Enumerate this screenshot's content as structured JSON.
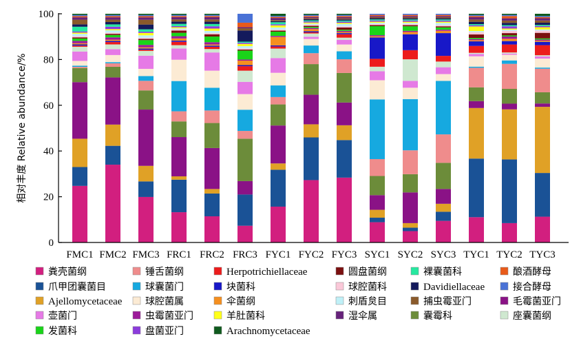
{
  "chart_data": {
    "type": "bar",
    "stacked": true,
    "ylabel": "相对丰度 Relative abundance/%",
    "ylim": [
      0,
      100
    ],
    "yticks": [
      0,
      20,
      40,
      60,
      80,
      100
    ],
    "grid": false,
    "legend_position": "bottom",
    "categories": [
      "FMC1",
      "FMC2",
      "FMC3",
      "FRC1",
      "FRC2",
      "FRC3",
      "FYC1",
      "FYC2",
      "FYC3",
      "SYC1",
      "SYC2",
      "SYC3",
      "TYC1",
      "TYC2",
      "TYC3"
    ],
    "series": [
      {
        "name": "粪壳菌纲",
        "color": "#d21f7f",
        "values": [
          24,
          33,
          19,
          13.5,
          11.5,
          7.5,
          17,
          28.5,
          28.5,
          9,
          5,
          9.5,
          11,
          8.5,
          11.5
        ]
      },
      {
        "name": "爪甲团囊菌目",
        "color": "#1a5296",
        "values": [
          8,
          8,
          6.5,
          14.5,
          10,
          14,
          17.5,
          19.5,
          16.5,
          2,
          1.5,
          4,
          25.5,
          28,
          19.5
        ]
      },
      {
        "name": "Ajellomycetaceae",
        "color": "#e0a126",
        "values": [
          12,
          9,
          6.5,
          1.5,
          2,
          0,
          3,
          6,
          6.5,
          3.5,
          2,
          3.5,
          22,
          22,
          29.5
        ]
      },
      {
        "name": "毛霉菌亚门",
        "color": "#8a1286",
        "values": [
          24,
          20,
          23.5,
          17.5,
          18,
          6,
          18,
          13.5,
          10,
          6.5,
          13.5,
          6.5,
          3,
          2.5,
          1.5
        ]
      },
      {
        "name": "囊霉科",
        "color": "#6c8c3a",
        "values": [
          6,
          4.5,
          8,
          7,
          11,
          19,
          10,
          14,
          13,
          8.5,
          8,
          11.5,
          6,
          6.5,
          5
        ]
      },
      {
        "name": "锤舌菌纲",
        "color": "#ef8c8c",
        "values": [
          0.5,
          1.5,
          4,
          4.5,
          5.5,
          3.5,
          3.5,
          5,
          6,
          7.5,
          10.5,
          12.5,
          8.5,
          11,
          10.5
        ]
      },
      {
        "name": "球囊菌门",
        "color": "#16a9e0",
        "values": [
          0.5,
          0.5,
          2,
          13.5,
          10,
          9.5,
          5.5,
          3.5,
          3.5,
          26.5,
          22.5,
          23.5,
          0.5,
          1.5,
          0.5
        ]
      },
      {
        "name": "球腔菌属",
        "color": "#fcebd4",
        "values": [
          2,
          3,
          3,
          9.5,
          7.5,
          7,
          6,
          3,
          3,
          8.5,
          5,
          3,
          4.5,
          2.5,
          4
        ]
      },
      {
        "name": "壶菌门",
        "color": "#e67ae6",
        "values": [
          4,
          2.5,
          5.5,
          5,
          8,
          5.5,
          7,
          1,
          2,
          4,
          3,
          3,
          1,
          0.5,
          1
        ]
      },
      {
        "name": "座囊菌纲",
        "color": "#cfe8d0",
        "values": [
          2,
          2,
          2,
          1.5,
          1.5,
          5,
          4.5,
          1.5,
          1,
          2,
          9.5,
          2.5,
          0.5,
          0.5,
          0.5
        ]
      },
      {
        "name": "Herpotrichiellaceae",
        "color": "#ec1c1c",
        "values": [
          0.5,
          1,
          0.5,
          1.5,
          1,
          2,
          1,
          0.5,
          1.5,
          3.5,
          4,
          2.5,
          3,
          3.5,
          4.5
        ]
      },
      {
        "name": "块菌科",
        "color": "#1818c8",
        "values": [
          0.5,
          0.5,
          0.5,
          0.5,
          0.5,
          0.5,
          0.5,
          0.5,
          0.5,
          9.5,
          7,
          10,
          2,
          1.5,
          1.5
        ]
      },
      {
        "name": "伞菌纲",
        "color": "#f58f1f",
        "values": [
          0.5,
          0.5,
          0.5,
          1,
          0.5,
          2,
          4,
          1,
          0.5,
          0.5,
          1,
          1,
          0.5,
          1,
          0.5
        ]
      },
      {
        "name": "虫霉菌亚门",
        "color": "#9c1b99",
        "values": [
          1,
          1,
          1,
          1,
          1,
          0.5,
          0.5,
          0.5,
          0.5,
          0.5,
          0.5,
          0.5,
          0.5,
          1,
          0.5
        ]
      },
      {
        "name": "发菌科",
        "color": "#19d419",
        "values": [
          1,
          1,
          2,
          1.5,
          2.5,
          4,
          2,
          0.5,
          0.5,
          4,
          2,
          1,
          0.5,
          0.5,
          0.5
        ]
      },
      {
        "name": "圆盘菌纲",
        "color": "#7a1010",
        "values": [
          0.5,
          0.5,
          0.5,
          1,
          1,
          0.5,
          0.5,
          0.5,
          1,
          0.5,
          0.5,
          0.5,
          1.5,
          1,
          2.5
        ]
      },
      {
        "name": "球腔菌科",
        "color": "#fac8d8",
        "values": [
          0.5,
          0.5,
          0.5,
          0.5,
          0.5,
          0.5,
          0.5,
          0.5,
          0.5,
          0.5,
          0.5,
          0.5,
          1,
          1,
          1
        ]
      },
      {
        "name": "刺盾炱目",
        "color": "#bff0f7",
        "values": [
          1,
          1,
          1,
          0.5,
          1,
          1,
          1,
          0.5,
          1,
          0.5,
          0.5,
          1,
          0.5,
          0.5,
          0.5
        ]
      },
      {
        "name": "羊肚菌科",
        "color": "#ffff1a",
        "values": [
          0.5,
          0.5,
          1,
          0.5,
          1,
          1,
          1,
          0.5,
          0.5,
          0.5,
          0.5,
          0.5,
          2,
          0.5,
          1
        ]
      },
      {
        "name": "盘菌亚门",
        "color": "#8c3cdc",
        "values": [
          0.5,
          1,
          0.5,
          0.5,
          1,
          0.5,
          0.5,
          0.5,
          0.5,
          0.5,
          0.5,
          0.5,
          0.5,
          1,
          0.5
        ]
      },
      {
        "name": "裸囊菌科",
        "color": "#26e8a0",
        "values": [
          2,
          1,
          1,
          1,
          1,
          0.5,
          1,
          0.5,
          0.5,
          0.5,
          0.5,
          0.5,
          0.5,
          0.5,
          0.5
        ]
      },
      {
        "name": "Davidiellaceae",
        "color": "#141a5c",
        "values": [
          1,
          1,
          2,
          1,
          1,
          5,
          0.5,
          0.5,
          0.5,
          0.5,
          0.5,
          0.5,
          1,
          1,
          1
        ]
      },
      {
        "name": "捕虫霉亚门",
        "color": "#8a5a2b",
        "values": [
          2,
          1,
          2,
          1,
          1,
          1,
          0.5,
          0.5,
          0.5,
          0.5,
          0.5,
          0.5,
          1,
          1,
          1
        ]
      },
      {
        "name": "湿伞属",
        "color": "#66227a",
        "values": [
          1,
          1,
          1,
          1,
          1,
          0.5,
          1,
          0.5,
          0.5,
          0.5,
          0.5,
          0.5,
          1,
          1,
          1
        ]
      },
      {
        "name": "酿酒酵母",
        "color": "#e85a1a",
        "values": [
          0.5,
          0.5,
          0.5,
          0.5,
          0.5,
          2,
          0.5,
          0.5,
          0.5,
          0.5,
          0.5,
          0.5,
          0.5,
          1,
          0.5
        ]
      },
      {
        "name": "接合酵母",
        "color": "#4a72d6",
        "values": [
          0.5,
          0.5,
          0.5,
          0.5,
          0.5,
          4,
          0.5,
          0.5,
          0.5,
          0.5,
          0.5,
          0.5,
          0.5,
          0.5,
          0.5
        ]
      },
      {
        "name": "Arachnomycetaceae",
        "color": "#0f5a1e",
        "values": [
          0.5,
          0.5,
          0.5,
          0.5,
          0.5,
          0,
          1,
          0.5,
          0.5,
          0,
          0,
          0,
          0.5,
          0.5,
          1
        ]
      }
    ],
    "legend_order": [
      "粪壳菌纲",
      "锤舌菌纲",
      "Herpotrichiellaceae",
      "圆盘菌纲",
      "裸囊菌科",
      "酿酒酵母",
      "爪甲团囊菌目",
      "球囊菌门",
      "块菌科",
      "球腔菌科",
      "Davidiellaceae",
      "接合酵母",
      "Ajellomycetaceae",
      "球腔菌属",
      "伞菌纲",
      "刺盾炱目",
      "捕虫霉亚门",
      "毛霉菌亚门",
      "壶菌门",
      "虫霉菌亚门",
      "羊肚菌科",
      "湿伞属",
      "囊霉科",
      "座囊菌纲",
      "发菌科",
      "盘菌亚门",
      "Arachnomycetaceae"
    ]
  }
}
